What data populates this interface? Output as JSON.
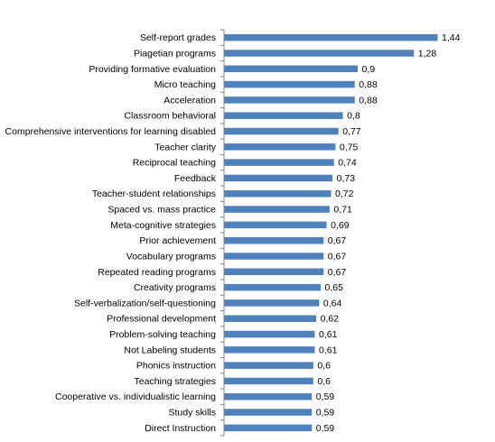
{
  "chart_data": {
    "type": "bar",
    "orientation": "horizontal",
    "categories": [
      "Self-report grades",
      "Piagetian programs",
      "Providing formative evaluation",
      "Micro teaching",
      "Acceleration",
      "Classroom behavioral",
      "Comprehensive interventions for learning disabled",
      "Teacher clarity",
      "Reciprocal teaching",
      "Feedback",
      "Teacher-student relationships",
      "Spaced vs. mass practice",
      "Meta-cognitive strategies",
      "Prior achievement",
      "Vocabulary programs",
      "Repeated reading programs",
      "Creativity programs",
      "Self-verbalization/self-questioning",
      "Professional development",
      "Problem-solving teaching",
      "Not Labeling students",
      "Phonics instruction",
      "Teaching strategies",
      "Cooperative vs. individualistic learning",
      "Study skills",
      "Direct Instruction"
    ],
    "values": [
      1.44,
      1.28,
      0.9,
      0.88,
      0.88,
      0.8,
      0.77,
      0.75,
      0.74,
      0.73,
      0.72,
      0.71,
      0.69,
      0.67,
      0.67,
      0.67,
      0.65,
      0.64,
      0.62,
      0.61,
      0.61,
      0.6,
      0.6,
      0.59,
      0.59,
      0.59
    ],
    "value_labels": [
      "1,44",
      "1,28",
      "0,9",
      "0,88",
      "0,88",
      "0,8",
      "0,77",
      "0,75",
      "0,74",
      "0,73",
      "0,72",
      "0,71",
      "0,69",
      "0,67",
      "0,67",
      "0,67",
      "0,65",
      "0,64",
      "0,62",
      "0,61",
      "0,61",
      "0,6",
      "0,6",
      "0,59",
      "0,59",
      "0,59"
    ],
    "xlim": [
      0,
      1.44
    ],
    "grid": false,
    "legend": "none",
    "bar_color": "#4f81bd",
    "axis_color": "#868686"
  }
}
